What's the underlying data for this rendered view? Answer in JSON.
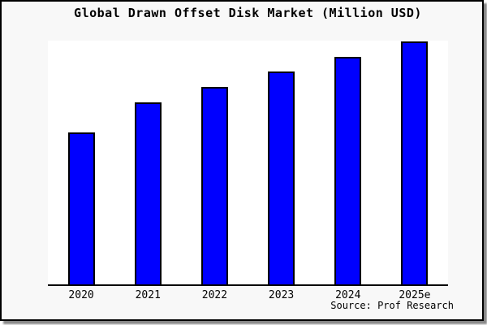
{
  "chart_data": {
    "type": "bar",
    "title": "Global Drawn Offset Disk Market (Million USD)",
    "categories": [
      "2020",
      "2021",
      "2022",
      "2023",
      "2024",
      "2025e"
    ],
    "values": [
      100,
      120,
      130,
      140,
      150,
      160
    ],
    "xlabel": "",
    "ylabel": "",
    "ylim": [
      0,
      160.5
    ],
    "grid": false,
    "legend": false,
    "y_axis_labels_visible": false,
    "source_note": "Source: Prof Research"
  },
  "colors": {
    "figure_bg": "#f8f8f8",
    "plot_bg": "#ffffff",
    "bar_fill": "#0000ff",
    "bar_edge": "#000000",
    "axis": "#000000",
    "text": "#000000",
    "frame_border": "#000000",
    "shadow": "#888888"
  }
}
